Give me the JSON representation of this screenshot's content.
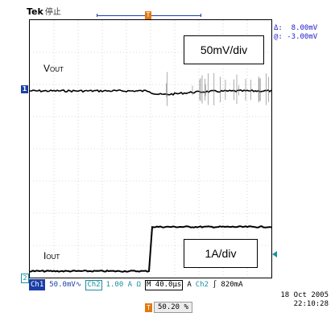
{
  "header": {
    "brand": "Tek",
    "status": "停止"
  },
  "cursor_readout": {
    "delta": "Δ:  8.00mV",
    "abs": "@: -3.00mV"
  },
  "scales": {
    "voltage": "50mV/div",
    "current": "1A/div"
  },
  "signals": {
    "vout_main": "V",
    "vout_sub": "OUT",
    "iout_main": "I",
    "iout_sub": "OUT"
  },
  "markers": {
    "ch1": "1",
    "ch2": "2",
    "trigger": "T"
  },
  "bottom_bar": {
    "ch1_tag": "Ch1",
    "ch1_value": "50.0mV∿",
    "ch2_tag": "Ch2",
    "ch2_value": "1.00 A Ω",
    "timebase": "M 40.0µs",
    "trig_mode": "A",
    "trig_source": "Ch2",
    "trig_slope": "∫",
    "trig_level": "820mA"
  },
  "datetime": {
    "date": "18 Oct  2005",
    "time": "22:10:28"
  },
  "trigger_position": {
    "value": "50.20 %"
  },
  "colors": {
    "ch1": "#1b3fa8",
    "ch2": "#1b8fa0",
    "trigger": "#e07a10"
  }
}
